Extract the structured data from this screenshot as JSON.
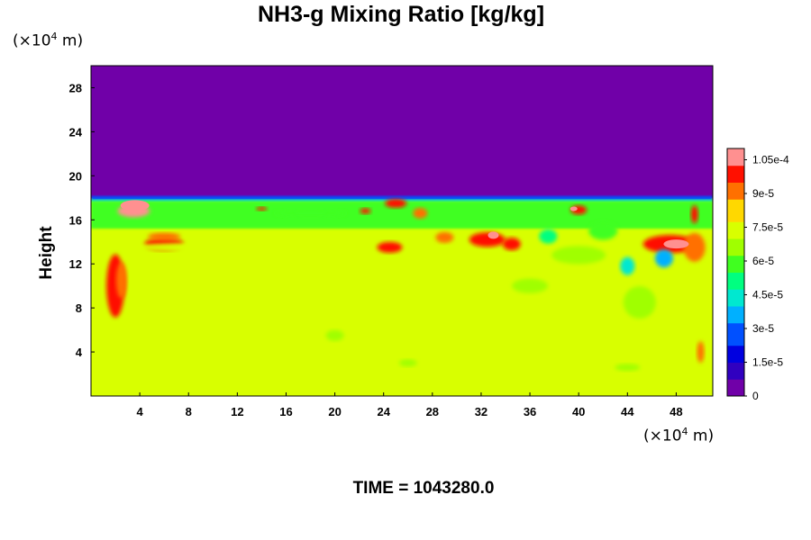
{
  "title": "NH3-g Mixing Ratio [kg/kg]",
  "footer": "TIME = 1043280.0",
  "chart_data": {
    "type": "heatmap",
    "title": "NH3-g Mixing Ratio [kg/kg]",
    "ylabel": "Height",
    "x_unit": {
      "prefix": "(×10",
      "exp": "4",
      "suffix": " m)"
    },
    "y_unit": {
      "prefix": "(×10",
      "exp": "4",
      "suffix": " m)"
    },
    "xlim": [
      0,
      51
    ],
    "ylim": [
      0,
      30
    ],
    "x_ticks": [
      4,
      8,
      12,
      16,
      20,
      24,
      28,
      32,
      36,
      40,
      44,
      48
    ],
    "y_ticks": [
      4,
      8,
      12,
      16,
      20,
      24,
      28
    ],
    "colorbar": {
      "min": 0,
      "max": 0.00011,
      "tick_values": [
        0,
        1.5e-05,
        3e-05,
        4.5e-05,
        6e-05,
        7.5e-05,
        9e-05,
        0.000105
      ],
      "tick_labels": [
        "0",
        "1.5e-5",
        "3e-5",
        "4.5e-5",
        "6e-5",
        "7.5e-5",
        "9e-5",
        "1.05e-4"
      ],
      "colors": [
        "#7000a8",
        "#3000c0",
        "#0000e0",
        "#0050ff",
        "#00b0ff",
        "#00e8d0",
        "#00ff80",
        "#40ff20",
        "#a0ff00",
        "#d8ff00",
        "#ffd800",
        "#ff7000",
        "#ff1000",
        "#ff9090"
      ]
    },
    "field_description": {
      "background_value": 7.7e-05,
      "top_value": 0,
      "interface_height": 18
    }
  }
}
